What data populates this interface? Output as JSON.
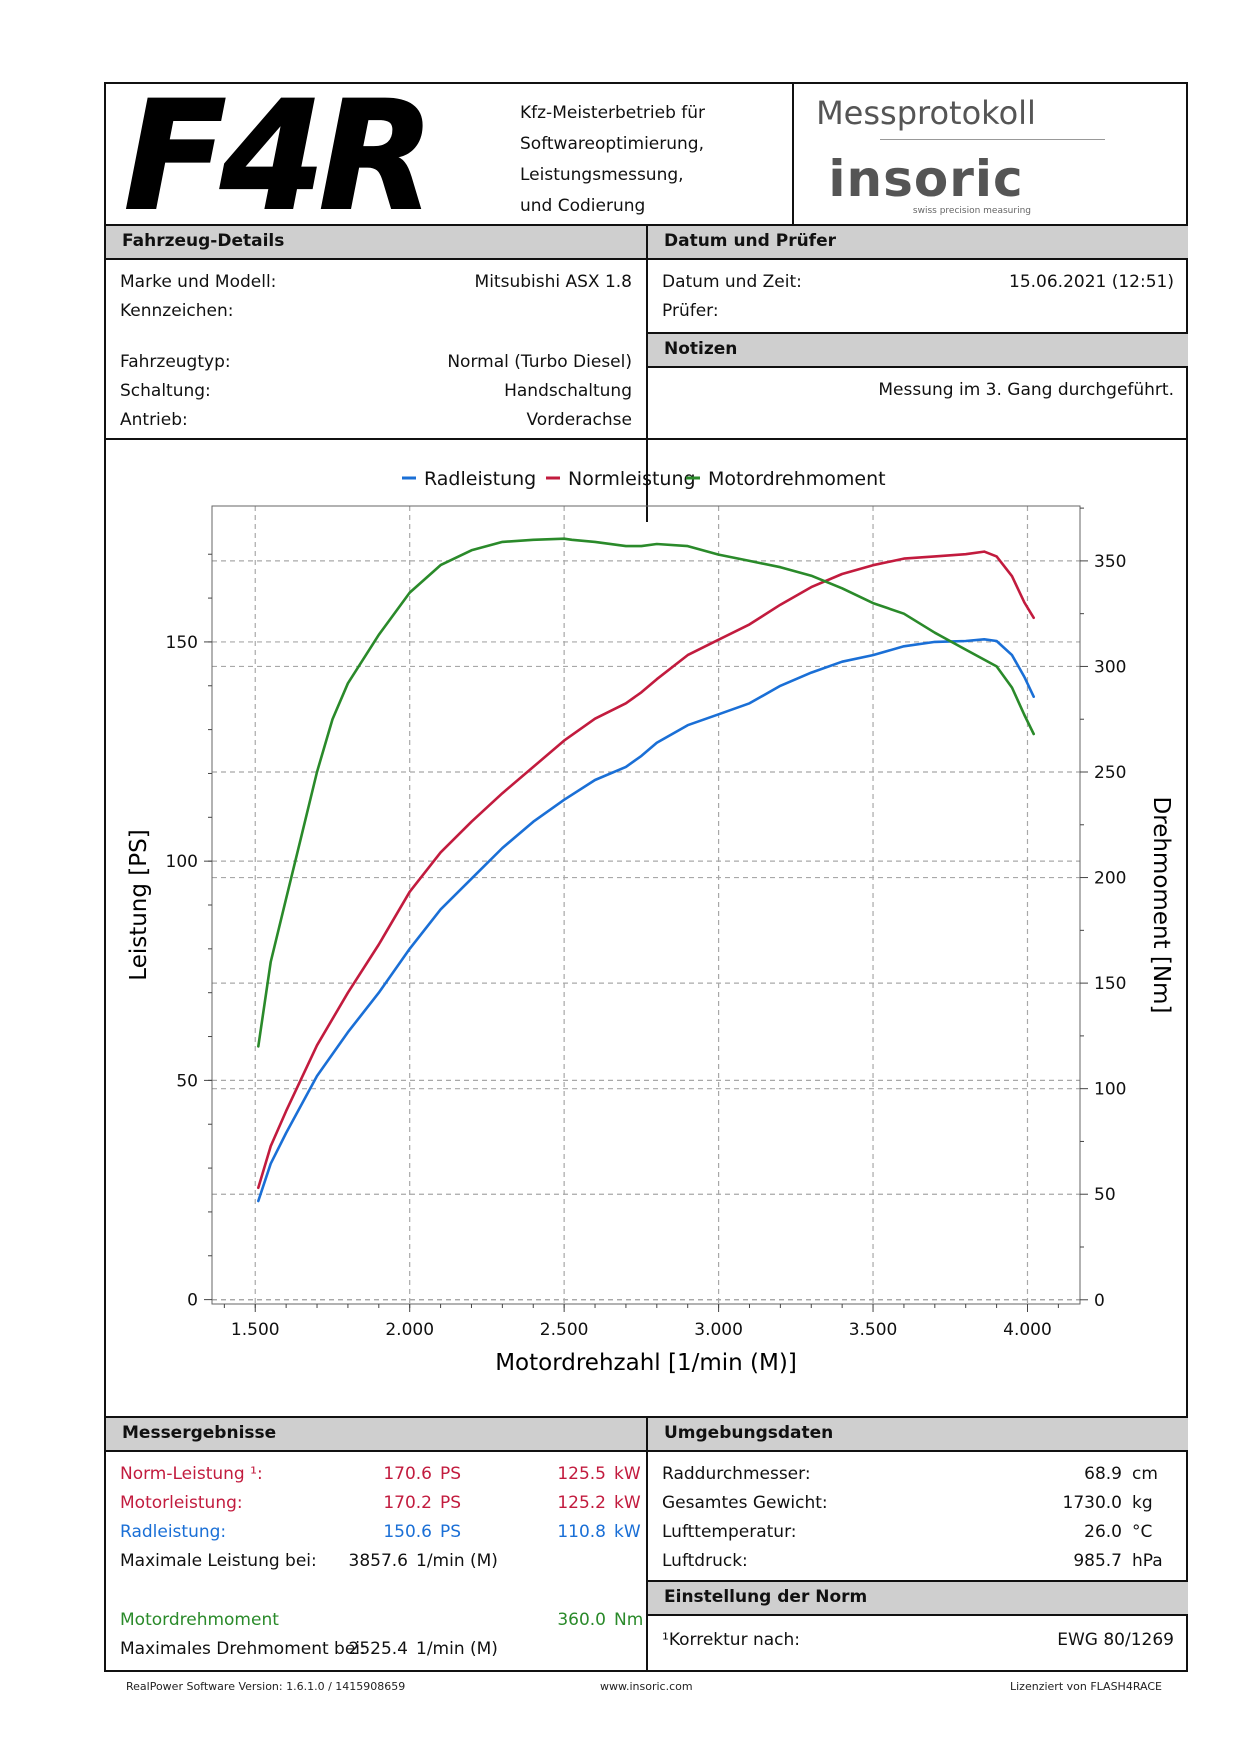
{
  "header": {
    "logo_text": "F4R",
    "company_lines": [
      "Kfz-Meisterbetrieb für",
      "Softwareoptimierung,",
      "Leistungsmessung,",
      "und Codierung"
    ],
    "protocol_title": "Messprotokoll",
    "brand": "insoric",
    "brand_tagline": "swiss precision measuring"
  },
  "vehicle": {
    "title": "Fahrzeug-Details",
    "make_label": "Marke und Modell:",
    "make_value": "Mitsubishi ASX 1.8",
    "plate_label": "Kennzeichen:",
    "plate_value": "",
    "type_label": "Fahrzeugtyp:",
    "type_value": "Normal (Turbo Diesel)",
    "gear_label": "Schaltung:",
    "gear_value": "Handschaltung",
    "drive_label": "Antrieb:",
    "drive_value": "Vorderachse"
  },
  "date_tester": {
    "title": "Datum und Prüfer",
    "date_label": "Datum und Zeit:",
    "date_value": "15.06.2021 (12:51)",
    "tester_label": "Prüfer:",
    "tester_value": ""
  },
  "notes": {
    "title": "Notizen",
    "text": "Messung im 3. Gang durchgeführt."
  },
  "chart_data": {
    "type": "line",
    "title": "",
    "xlabel": "Motordrehzahl [1/min (M)]",
    "ylabel": "Leistung [PS]",
    "y2label": "Drehmoment [Nm]",
    "xlim": [
      1360,
      4170
    ],
    "ylim": [
      -1,
      181
    ],
    "y2lim": [
      -2,
      376
    ],
    "x_ticks": [
      1500,
      2000,
      2500,
      3000,
      3500,
      4000
    ],
    "x_tick_labels": [
      "1.500",
      "2.000",
      "2.500",
      "3.000",
      "3.500",
      "4.000"
    ],
    "y_ticks": [
      0,
      50,
      100,
      150
    ],
    "y_tick_labels": [
      "0",
      "50",
      "100",
      "150"
    ],
    "y2_ticks": [
      0,
      50,
      100,
      150,
      200,
      250,
      300,
      350
    ],
    "y2_tick_labels": [
      "0",
      "50",
      "100",
      "150",
      "200",
      "250",
      "300",
      "350"
    ],
    "grid": true,
    "legend_position": "top-center",
    "series": [
      {
        "name": "Radleistung",
        "axis": "left",
        "color": "#1a6fd6",
        "x": [
          1510,
          1550,
          1600,
          1700,
          1800,
          1900,
          2000,
          2100,
          2200,
          2300,
          2400,
          2500,
          2600,
          2700,
          2750,
          2800,
          2900,
          3000,
          3100,
          3200,
          3300,
          3400,
          3500,
          3600,
          3700,
          3800,
          3860,
          3900,
          3950,
          3990,
          4020
        ],
        "y": [
          22.5,
          31,
          38,
          51,
          61,
          70,
          80,
          89,
          96,
          103,
          109,
          114,
          118.5,
          121.5,
          124,
          127,
          131,
          133.5,
          136,
          140,
          143,
          145.5,
          147,
          149,
          150,
          150.2,
          150.6,
          150.2,
          147,
          142,
          137.5
        ]
      },
      {
        "name": "Normleistung",
        "axis": "left",
        "color": "#c21b3e",
        "x": [
          1510,
          1550,
          1600,
          1700,
          1800,
          1900,
          2000,
          2100,
          2200,
          2300,
          2400,
          2500,
          2600,
          2700,
          2750,
          2800,
          2900,
          3000,
          3100,
          3200,
          3300,
          3400,
          3500,
          3600,
          3700,
          3800,
          3860,
          3900,
          3950,
          3990,
          4020
        ],
        "y": [
          25.5,
          35,
          43,
          58,
          70,
          81,
          93,
          102,
          109,
          115.5,
          121.5,
          127.5,
          132.5,
          136,
          138.5,
          141.5,
          147,
          150.5,
          154,
          158.5,
          162.5,
          165.5,
          167.5,
          169,
          169.5,
          170,
          170.6,
          169.5,
          165,
          159,
          155.5
        ]
      },
      {
        "name": "Motordrehmoment",
        "axis": "right",
        "color": "#2a8a2a",
        "x": [
          1510,
          1530,
          1550,
          1600,
          1650,
          1700,
          1750,
          1800,
          1900,
          2000,
          2100,
          2200,
          2300,
          2400,
          2500,
          2525,
          2600,
          2700,
          2750,
          2800,
          2900,
          3000,
          3100,
          3200,
          3300,
          3400,
          3500,
          3600,
          3700,
          3800,
          3900,
          3950,
          3990,
          4020
        ],
        "y": [
          120,
          140,
          160,
          190,
          220,
          250,
          275,
          292,
          315,
          335,
          348,
          355,
          359,
          360,
          360.5,
          360.0,
          359,
          357,
          357,
          358,
          357,
          353,
          350,
          347,
          343,
          337,
          330,
          325,
          316,
          308,
          300,
          290,
          277,
          268
        ]
      }
    ]
  },
  "results": {
    "title": "Messergebnisse",
    "norm_label": "Norm-Leistung ¹:",
    "norm_ps": "170.6",
    "norm_kw": "125.5",
    "motor_label": "Motorleistung:",
    "motor_ps": "170.2",
    "motor_kw": "125.2",
    "wheel_label": "Radleistung:",
    "wheel_ps": "150.6",
    "wheel_kw": "110.8",
    "unit_ps": "PS",
    "unit_kw": "kW",
    "maxp_label": "Maximale Leistung bei:",
    "maxp_value": "3857.6",
    "rpm_unit": "1/min (M)",
    "torque_label": "Motordrehmoment",
    "torque_value": "360.0",
    "torque_unit": "Nm",
    "maxt_label": "Maximales Drehmoment bei:",
    "maxt_value": "2525.4"
  },
  "environment": {
    "title": "Umgebungsdaten",
    "wheel_label": "Raddurchmesser:",
    "wheel_value": "68.9",
    "wheel_unit": "cm",
    "weight_label": "Gesamtes Gewicht:",
    "weight_value": "1730.0",
    "weight_unit": "kg",
    "temp_label": "Lufttemperatur:",
    "temp_value": "26.0",
    "temp_unit": "°C",
    "pressure_label": "Luftdruck:",
    "pressure_value": "985.7",
    "pressure_unit": "hPa"
  },
  "norm_setting": {
    "title": "Einstellung der Norm",
    "label": "¹Korrektur nach:",
    "value": "EWG 80/1269"
  },
  "footer": {
    "version": "RealPower Software Version: 1.6.1.0 / 1415908659",
    "website": "www.insoric.com",
    "license": "Lizenziert von FLASH4RACE"
  }
}
